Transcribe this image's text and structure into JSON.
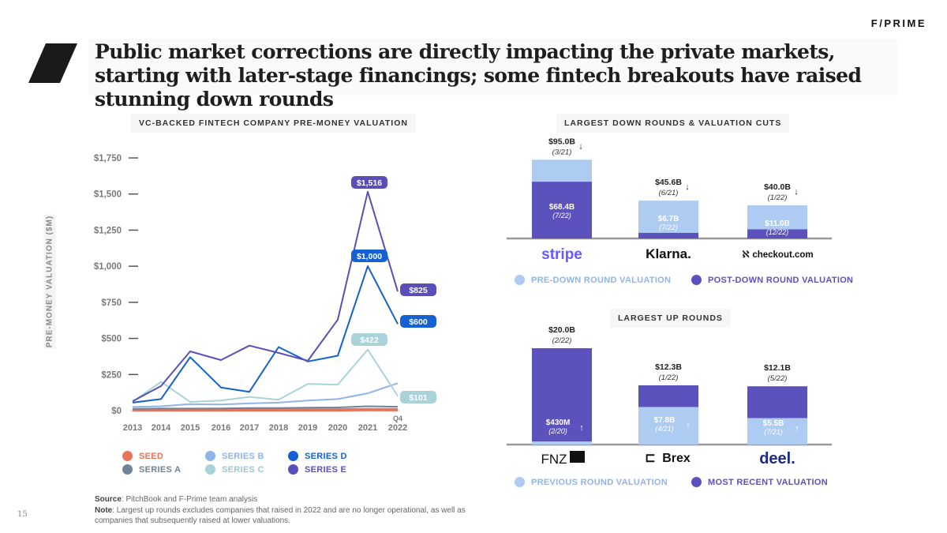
{
  "brand": "F/PRIME",
  "title": "Public market corrections are directly impacting the private markets, starting with later-stage financings; some fintech breakouts have raised stunning down rounds",
  "page_number": "15",
  "left_chart_title": "VC-BACKED FINTECH COMPANY PRE-MONEY VALUATION",
  "down_title": "LARGEST DOWN ROUNDS & VALUATION CUTS",
  "up_title": "LARGEST UP ROUNDS",
  "footnote": {
    "source_label": "Source",
    "source_text": ": PitchBook and F-Prime team analysis",
    "note_label": "Note",
    "note_text": ": Largest up rounds excludes companies that raised in 2022 and are no longer operational, as well as companies that subsequently raised at lower valuations."
  },
  "colors": {
    "seed": "#e8735a",
    "series_a": "#6f8496",
    "series_b": "#8fb4ea",
    "series_c": "#a9d3d8",
    "series_d": "#1560d3",
    "series_e": "#5a4fb8",
    "light_bar": "#aecbf2",
    "dark_bar": "#5b52bd"
  },
  "chart_data": [
    {
      "type": "line",
      "title": "VC-BACKED FINTECH COMPANY PRE-MONEY VALUATION",
      "ylabel": "PRE-MONEY VALUATION ($M)",
      "x": [
        "2013",
        "2014",
        "2015",
        "2016",
        "2017",
        "2018",
        "2019",
        "2020",
        "2021",
        "Q4 2022"
      ],
      "ylim": [
        0,
        1750
      ],
      "yticks": [
        "$0",
        "$250",
        "$500",
        "$750",
        "$1,000",
        "$1,250",
        "$1,500",
        "$1,750"
      ],
      "series": [
        {
          "name": "SEED",
          "color": "#e8735a",
          "values": [
            5,
            5,
            4,
            5,
            5,
            5,
            5,
            5,
            7,
            6
          ]
        },
        {
          "name": "SERIES A",
          "color": "#6f8496",
          "values": [
            12,
            14,
            14,
            15,
            18,
            18,
            20,
            22,
            30,
            27
          ]
        },
        {
          "name": "SERIES B",
          "color": "#8fb4ea",
          "values": [
            25,
            30,
            45,
            42,
            50,
            55,
            70,
            80,
            120,
            190
          ]
        },
        {
          "name": "SERIES C",
          "color": "#a9d3d8",
          "values": [
            60,
            200,
            60,
            70,
            95,
            75,
            185,
            180,
            422,
            101
          ]
        },
        {
          "name": "SERIES D",
          "color": "#1560d3",
          "values": [
            55,
            80,
            370,
            160,
            130,
            440,
            340,
            380,
            1000,
            600
          ]
        },
        {
          "name": "SERIES E",
          "color": "#5a4fb8",
          "values": [
            65,
            170,
            410,
            350,
            450,
            400,
            345,
            630,
            1516,
            825
          ]
        }
      ],
      "callouts": [
        {
          "series": "SERIES E",
          "label": "$1,516",
          "value": 1516
        },
        {
          "series": "SERIES D",
          "label": "$1,000",
          "value": 1000
        },
        {
          "series": "SERIES C",
          "label": "$422",
          "value": 422
        },
        {
          "series": "SERIES E",
          "label": "$825",
          "value": 825
        },
        {
          "series": "SERIES D",
          "label": "$600",
          "value": 600
        },
        {
          "series": "SERIES C",
          "label": "$101",
          "value": 101
        }
      ],
      "x_note": "Q4"
    },
    {
      "type": "bar",
      "title": "LARGEST DOWN ROUNDS & VALUATION CUTS",
      "categories": [
        "stripe",
        "Klarna.",
        "checkout.com"
      ],
      "series": [
        {
          "name": "PRE-DOWN ROUND VALUATION",
          "values": [
            95.0,
            45.6,
            40.0
          ],
          "labels": [
            "$95.0B",
            "$45.6B",
            "$40.0B"
          ],
          "dates": [
            "(3/21)",
            "(6/21)",
            "(1/22)"
          ]
        },
        {
          "name": "POST-DOWN ROUND VALUATION",
          "values": [
            68.4,
            6.7,
            11.0
          ],
          "labels": [
            "$68.4B",
            "$6.7B",
            "$11.0B"
          ],
          "dates": [
            "(7/22)",
            "(7/22)",
            "(12/22)"
          ]
        }
      ]
    },
    {
      "type": "bar",
      "title": "LARGEST UP ROUNDS",
      "categories": [
        "FNZ",
        "Brex",
        "deel."
      ],
      "series": [
        {
          "name": "PREVIOUS ROUND VALUATION",
          "values": [
            0.43,
            7.8,
            5.5
          ],
          "labels": [
            "$430M",
            "$7.8B",
            "$5.5B"
          ],
          "dates": [
            "(2/20)",
            "(4/21)",
            "(7/21)"
          ]
        },
        {
          "name": "MOST RECENT VALUATION",
          "values": [
            20.0,
            12.3,
            12.1
          ],
          "labels": [
            "$20.0B",
            "$12.3B",
            "$12.1B"
          ],
          "dates": [
            "(2/22)",
            "(1/22)",
            "(5/22)"
          ]
        }
      ]
    }
  ],
  "legend_left": [
    "SEED",
    "SERIES A",
    "SERIES B",
    "SERIES C",
    "SERIES D",
    "SERIES E"
  ],
  "legend_down": [
    "PRE-DOWN ROUND VALUATION",
    "POST-DOWN ROUND VALUATION"
  ],
  "legend_up": [
    "PREVIOUS ROUND VALUATION",
    "MOST RECENT VALUATION"
  ],
  "logos": {
    "stripe": "stripe",
    "klarna": "Klarna.",
    "checkout": "checkout.com",
    "fnz": "FNZ",
    "brex": "Brex",
    "deel": "deel."
  }
}
